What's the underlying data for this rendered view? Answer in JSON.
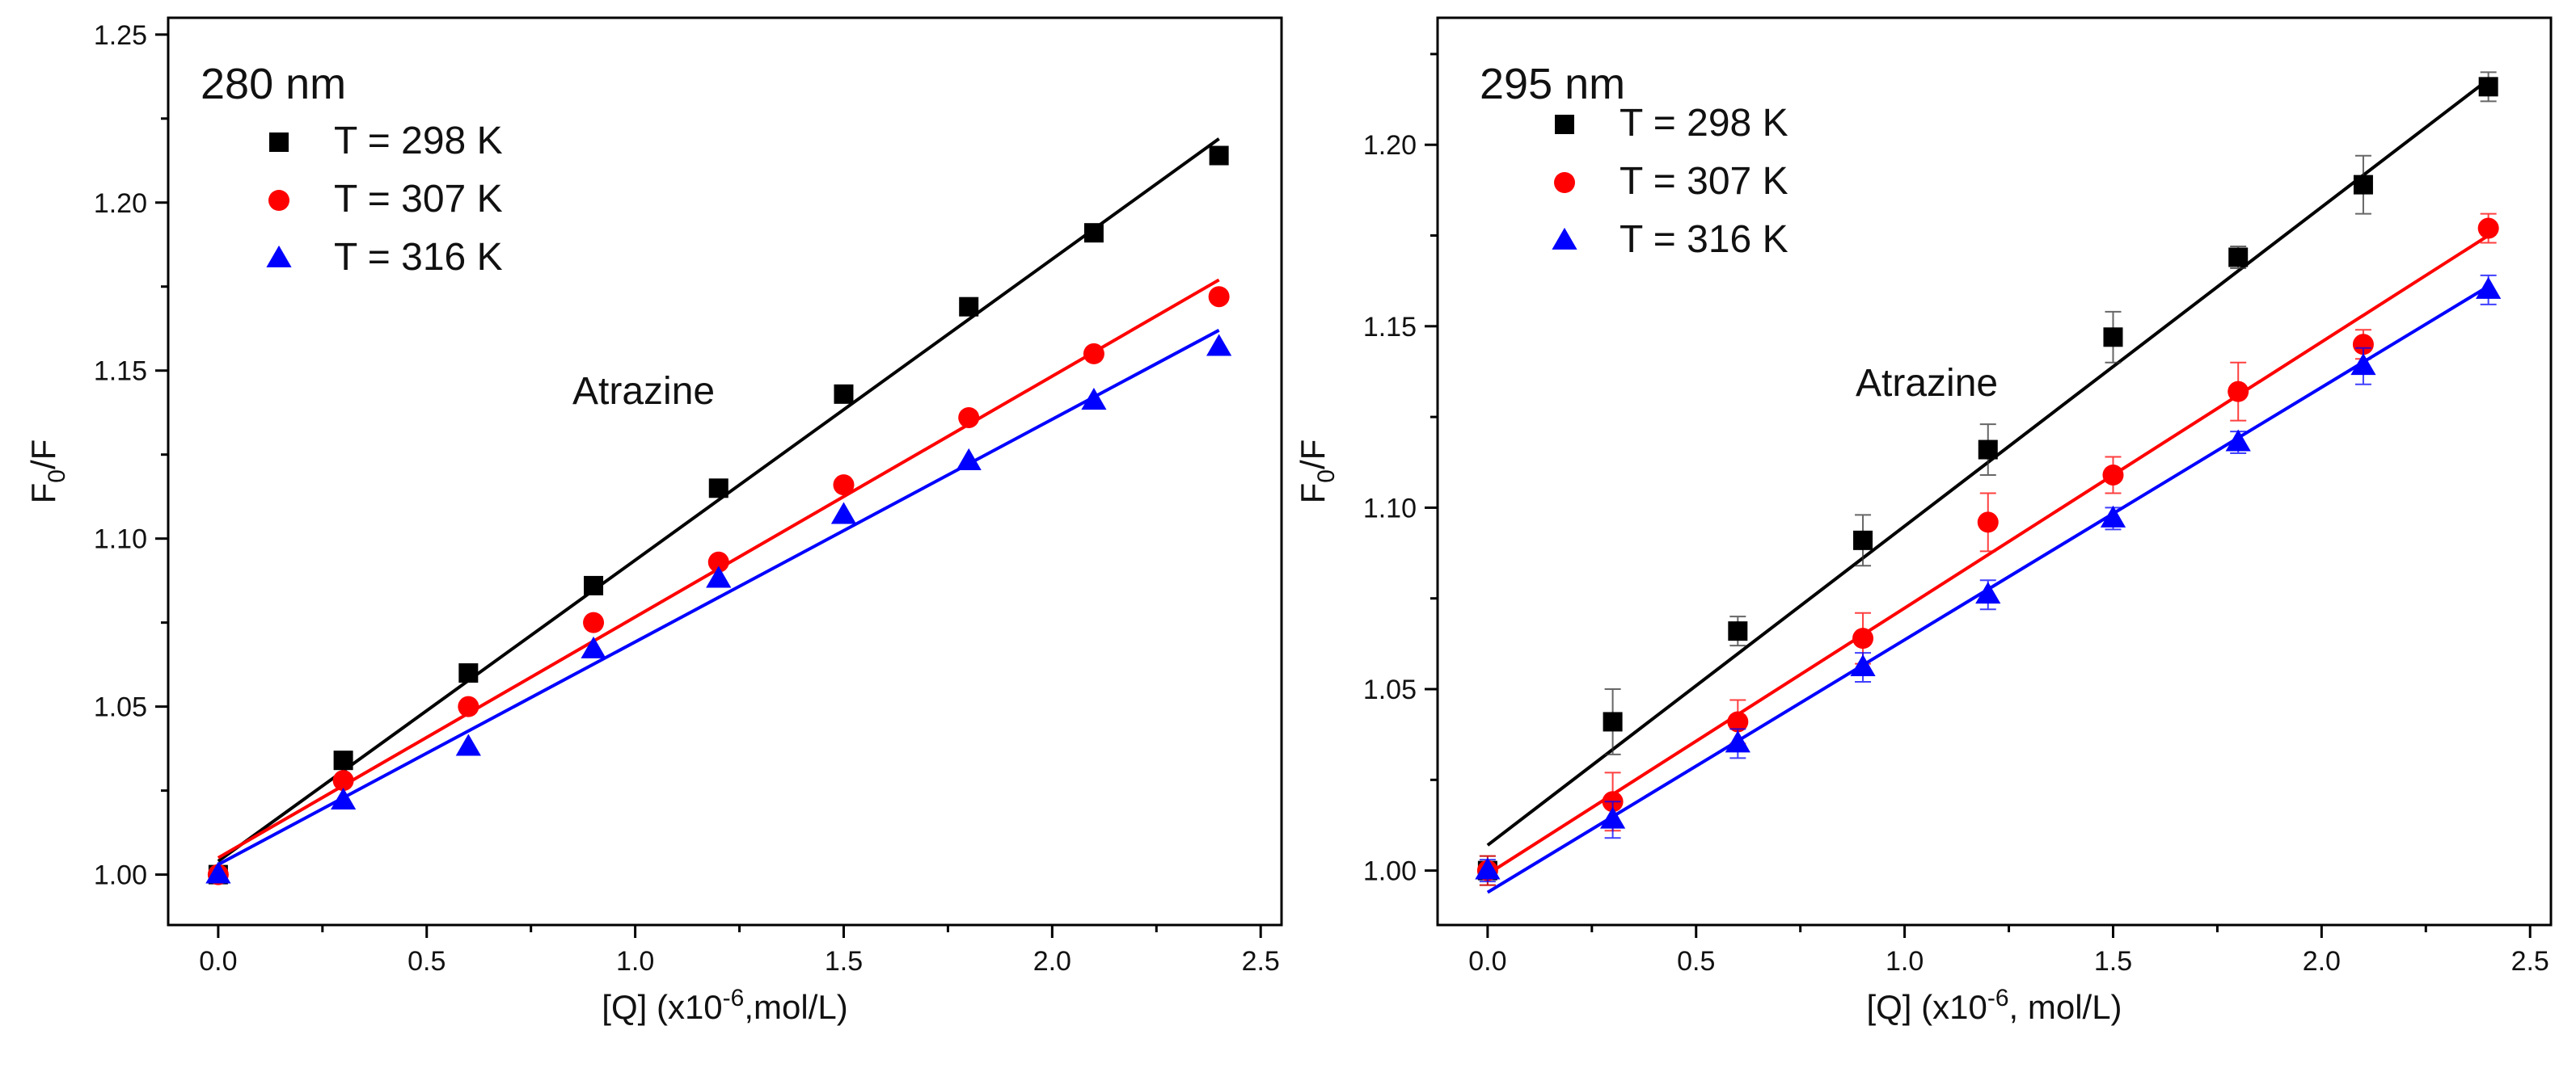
{
  "chart_data": [
    {
      "type": "scatter",
      "title": "280 nm",
      "xlabel": {
        "prefix": "[Q] (x10",
        "sup": "-6",
        "suffix": ",mol/L)"
      },
      "ylabel": {
        "prefix": "F",
        "sub": "0",
        "suffix": "/F"
      },
      "xlim": [
        -0.12,
        2.55
      ],
      "ylim": [
        0.985,
        1.255
      ],
      "xticks": [
        0.0,
        0.5,
        1.0,
        1.5,
        2.0,
        2.5
      ],
      "xtick_labels": [
        "0.0",
        "0.5",
        "1.0",
        "1.5",
        "2.0",
        "2.5"
      ],
      "yticks": [
        1.0,
        1.05,
        1.1,
        1.15,
        1.2,
        1.25
      ],
      "ytick_labels": [
        "1.00",
        "1.05",
        "1.10",
        "1.15",
        "1.20",
        "1.25"
      ],
      "annotation": "Atrazine",
      "legend_position": "top-left",
      "x": [
        0.0,
        0.3,
        0.6,
        0.9,
        1.2,
        1.5,
        1.8,
        2.1,
        2.4
      ],
      "series": [
        {
          "name": "T = 298 K",
          "marker": "square",
          "color": "#000000",
          "values": [
            1.0,
            1.034,
            1.06,
            1.086,
            1.115,
            1.143,
            1.169,
            1.191,
            1.214
          ],
          "errors": [
            0,
            0,
            0,
            0,
            0,
            0,
            0,
            0,
            0
          ],
          "fit": [
            1.004,
            1.219
          ]
        },
        {
          "name": "T = 307 K",
          "marker": "circle",
          "color": "#ff0000",
          "values": [
            1.0,
            1.028,
            1.05,
            1.075,
            1.093,
            1.116,
            1.136,
            1.155,
            1.172
          ],
          "errors": [
            0,
            0,
            0,
            0,
            0,
            0,
            0,
            0,
            0
          ],
          "fit": [
            1.005,
            1.177
          ]
        },
        {
          "name": "T = 316 K",
          "marker": "triangle",
          "color": "#0000ff",
          "values": [
            1.0,
            1.022,
            1.038,
            1.067,
            1.088,
            1.107,
            1.123,
            1.141,
            1.157
          ],
          "errors": [
            0,
            0,
            0,
            0,
            0,
            0,
            0,
            0,
            0
          ],
          "fit": [
            1.003,
            1.162
          ]
        }
      ]
    },
    {
      "type": "scatter",
      "title": "295 nm",
      "xlabel": {
        "prefix": "[Q] (x10",
        "sup": "-6",
        "suffix": ", mol/L)"
      },
      "ylabel": {
        "prefix": "F",
        "sub": "0",
        "suffix": "/F"
      },
      "xlim": [
        -0.12,
        2.55
      ],
      "ylim": [
        0.985,
        1.235
      ],
      "xticks": [
        0.0,
        0.5,
        1.0,
        1.5,
        2.0,
        2.5
      ],
      "xtick_labels": [
        "0.0",
        "0.5",
        "1.0",
        "1.5",
        "2.0",
        "2.5"
      ],
      "yticks": [
        1.0,
        1.05,
        1.1,
        1.15,
        1.2
      ],
      "ytick_labels": [
        "1.00",
        "1.05",
        "1.10",
        "1.15",
        "1.20"
      ],
      "annotation": "Atrazine",
      "legend_position": "top-left",
      "x": [
        0.0,
        0.3,
        0.6,
        0.9,
        1.2,
        1.5,
        1.8,
        2.1,
        2.4
      ],
      "series": [
        {
          "name": "T = 298 K",
          "marker": "square",
          "color": "#000000",
          "values": [
            1.0,
            1.041,
            1.066,
            1.091,
            1.116,
            1.147,
            1.169,
            1.189,
            1.216
          ],
          "errors": [
            0.004,
            0.009,
            0.004,
            0.007,
            0.007,
            0.007,
            0.003,
            0.008,
            0.004
          ],
          "fit": [
            1.007,
            1.218
          ]
        },
        {
          "name": "T = 307 K",
          "marker": "circle",
          "color": "#ff0000",
          "values": [
            1.0,
            1.019,
            1.041,
            1.064,
            1.096,
            1.109,
            1.132,
            1.145,
            1.177
          ],
          "errors": [
            0.004,
            0.008,
            0.006,
            0.007,
            0.008,
            0.005,
            0.008,
            0.004,
            0.004
          ],
          "fit": [
            0.999,
            1.175
          ]
        },
        {
          "name": "T = 316 K",
          "marker": "triangle",
          "color": "#0000ff",
          "values": [
            1.0,
            1.014,
            1.035,
            1.056,
            1.076,
            1.097,
            1.118,
            1.139,
            1.16
          ],
          "errors": [
            0.003,
            0.005,
            0.004,
            0.004,
            0.004,
            0.003,
            0.003,
            0.005,
            0.004
          ],
          "fit": [
            0.994,
            1.161
          ]
        }
      ]
    }
  ]
}
